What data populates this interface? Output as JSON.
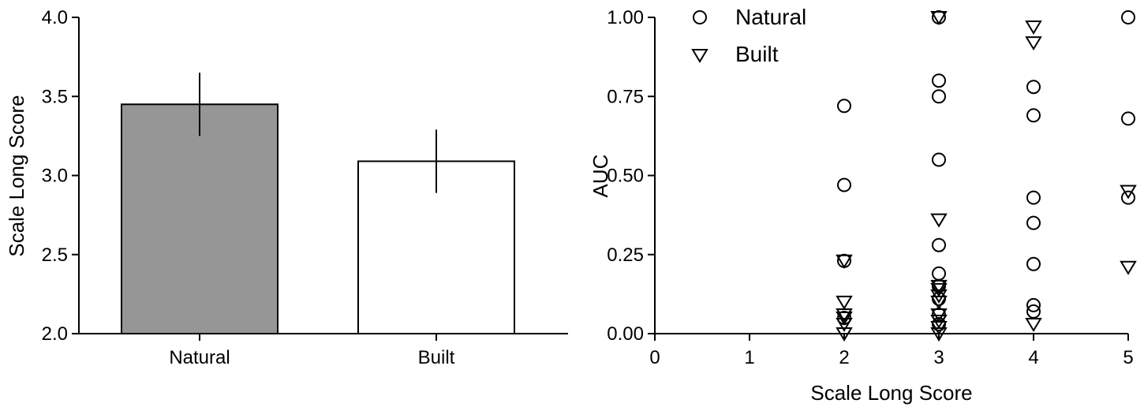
{
  "chart_data": [
    {
      "type": "bar",
      "categories": [
        "Natural",
        "Built"
      ],
      "values": [
        3.45,
        3.09
      ],
      "errors": [
        0.2,
        0.2
      ],
      "bar_colors": [
        "#969696",
        "#ffffff"
      ],
      "ylabel": "Scale Long Score",
      "ylim": [
        2.0,
        4.0
      ],
      "yticks": [
        "2.0",
        "2.5",
        "3.0",
        "3.5",
        "4.0"
      ]
    },
    {
      "type": "scatter",
      "xlabel": "Scale Long Score",
      "ylabel": "AUC",
      "xlim": [
        0,
        5
      ],
      "ylim": [
        0,
        1
      ],
      "xticks": [
        "0",
        "1",
        "2",
        "3",
        "4",
        "5"
      ],
      "yticks": [
        "0.00",
        "0.25",
        "0.50",
        "0.75",
        "1.00"
      ],
      "legend_position": "top-left",
      "series": [
        {
          "name": "Natural",
          "marker": "circle",
          "points": [
            [
              2,
              0.72
            ],
            [
              2,
              0.47
            ],
            [
              2,
              0.23
            ],
            [
              2,
              0.05
            ],
            [
              3,
              1.0
            ],
            [
              3,
              0.8
            ],
            [
              3,
              0.75
            ],
            [
              3,
              0.55
            ],
            [
              3,
              0.28
            ],
            [
              3,
              0.19
            ],
            [
              3,
              0.15
            ],
            [
              3,
              0.11
            ],
            [
              3,
              0.06
            ],
            [
              3,
              0.03
            ],
            [
              4,
              0.78
            ],
            [
              4,
              0.69
            ],
            [
              4,
              0.43
            ],
            [
              4,
              0.35
            ],
            [
              4,
              0.22
            ],
            [
              4,
              0.09
            ],
            [
              4,
              0.07
            ],
            [
              5,
              1.0
            ],
            [
              5,
              0.68
            ],
            [
              5,
              0.43
            ]
          ]
        },
        {
          "name": "Built",
          "marker": "triangle-down",
          "points": [
            [
              2,
              0.23
            ],
            [
              2,
              0.1
            ],
            [
              2,
              0.06
            ],
            [
              2,
              0.05
            ],
            [
              2,
              0.03
            ],
            [
              2,
              0.0
            ],
            [
              3,
              1.0
            ],
            [
              3,
              0.36
            ],
            [
              3,
              0.15
            ],
            [
              3,
              0.14
            ],
            [
              3,
              0.12
            ],
            [
              3,
              0.1
            ],
            [
              3,
              0.06
            ],
            [
              3,
              0.04
            ],
            [
              3,
              0.02
            ],
            [
              3,
              0.0
            ],
            [
              4,
              0.97
            ],
            [
              4,
              0.92
            ],
            [
              4,
              0.03
            ],
            [
              5,
              0.45
            ],
            [
              5,
              0.21
            ]
          ]
        }
      ]
    }
  ]
}
